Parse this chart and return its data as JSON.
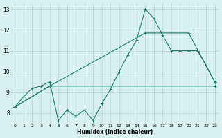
{
  "xlabel": "Humidex (Indice chaleur)",
  "bg_color": "#d8f0f0",
  "line_color": "#1a7a6e",
  "xlim": [
    -0.5,
    23.5
  ],
  "ylim": [
    7.5,
    13.3
  ],
  "yticks": [
    8,
    9,
    10,
    11,
    12,
    13
  ],
  "xticks": [
    0,
    1,
    2,
    3,
    4,
    5,
    6,
    7,
    8,
    9,
    10,
    11,
    12,
    13,
    14,
    15,
    16,
    17,
    18,
    19,
    20,
    21,
    22,
    23
  ],
  "line1_x": [
    0,
    1,
    2,
    3,
    4,
    5,
    6,
    7,
    8,
    9,
    10,
    11,
    12,
    13,
    14,
    15,
    16,
    17,
    18,
    19,
    20,
    21,
    22,
    23
  ],
  "line1_y": [
    8.3,
    8.8,
    9.2,
    9.3,
    9.5,
    7.65,
    8.15,
    7.85,
    8.15,
    7.65,
    8.45,
    9.15,
    10.0,
    10.8,
    11.5,
    13.0,
    12.55,
    11.75,
    11.0,
    11.0,
    11.0,
    11.0,
    10.3,
    9.5
  ],
  "line2_x": [
    0,
    4,
    23
  ],
  "line2_y": [
    8.3,
    9.3,
    9.3
  ],
  "line3_x": [
    0,
    4,
    15,
    20,
    23
  ],
  "line3_y": [
    8.3,
    9.3,
    11.85,
    11.85,
    9.5
  ]
}
